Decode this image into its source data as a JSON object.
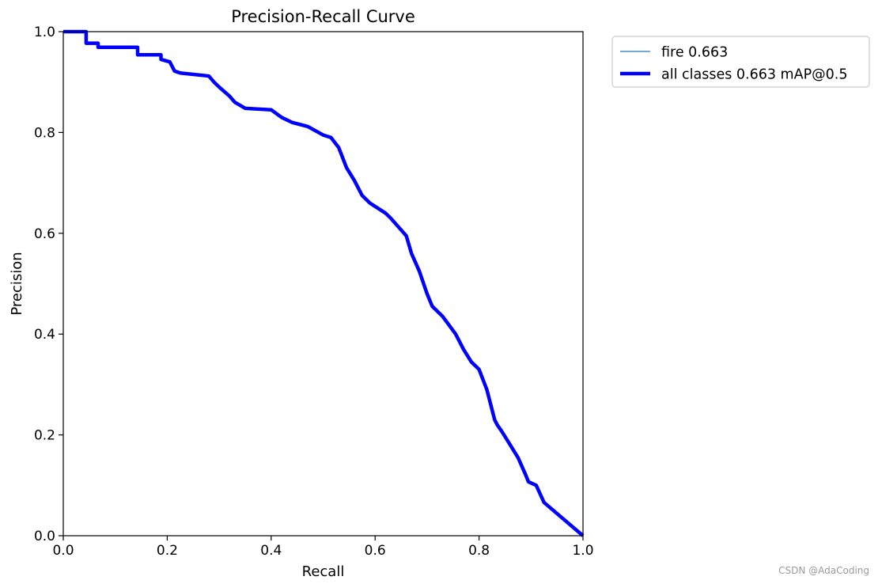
{
  "chart_data": {
    "type": "line",
    "title": "Precision-Recall Curve",
    "xlabel": "Recall",
    "ylabel": "Precision",
    "xlim": [
      0,
      1
    ],
    "ylim": [
      0,
      1
    ],
    "xticks": [
      "0.0",
      "0.2",
      "0.4",
      "0.6",
      "0.8",
      "1.0"
    ],
    "yticks": [
      "0.0",
      "0.2",
      "0.4",
      "0.6",
      "0.8",
      "1.0"
    ],
    "grid": false,
    "legend_position": "outside-top-right",
    "series": [
      {
        "name": "fire 0.663",
        "color": "#1f77b4",
        "line_width": "thin",
        "x": [
          0.0,
          0.044,
          0.044,
          0.067,
          0.067,
          0.143,
          0.143,
          0.188,
          0.188,
          0.205,
          0.21,
          0.214,
          0.225,
          0.28,
          0.29,
          0.3,
          0.32,
          0.33,
          0.35,
          0.4,
          0.42,
          0.44,
          0.47,
          0.5,
          0.515,
          0.53,
          0.545,
          0.56,
          0.575,
          0.59,
          0.62,
          0.63,
          0.66,
          0.67,
          0.685,
          0.7,
          0.71,
          0.72,
          0.73,
          0.755,
          0.77,
          0.785,
          0.8,
          0.815,
          0.83,
          0.835,
          0.845,
          0.86,
          0.875,
          0.89,
          0.895,
          0.91,
          0.925,
          1.0
        ],
        "y": [
          1.0,
          1.0,
          0.977,
          0.977,
          0.969,
          0.969,
          0.954,
          0.954,
          0.945,
          0.94,
          0.93,
          0.922,
          0.918,
          0.912,
          0.9,
          0.89,
          0.872,
          0.86,
          0.848,
          0.845,
          0.83,
          0.82,
          0.812,
          0.795,
          0.79,
          0.77,
          0.73,
          0.705,
          0.675,
          0.66,
          0.64,
          0.63,
          0.595,
          0.56,
          0.525,
          0.48,
          0.455,
          0.445,
          0.435,
          0.4,
          0.37,
          0.345,
          0.33,
          0.29,
          0.23,
          0.22,
          0.205,
          0.18,
          0.155,
          0.12,
          0.107,
          0.1,
          0.066,
          0.0
        ]
      },
      {
        "name": "all classes 0.663 mAP@0.5",
        "color": "#0000ff",
        "line_width": "thick",
        "x": [
          0.0,
          0.044,
          0.044,
          0.067,
          0.067,
          0.143,
          0.143,
          0.188,
          0.188,
          0.205,
          0.21,
          0.214,
          0.225,
          0.28,
          0.29,
          0.3,
          0.32,
          0.33,
          0.35,
          0.4,
          0.42,
          0.44,
          0.47,
          0.5,
          0.515,
          0.53,
          0.545,
          0.56,
          0.575,
          0.59,
          0.62,
          0.63,
          0.66,
          0.67,
          0.685,
          0.7,
          0.71,
          0.72,
          0.73,
          0.755,
          0.77,
          0.785,
          0.8,
          0.815,
          0.83,
          0.835,
          0.845,
          0.86,
          0.875,
          0.89,
          0.895,
          0.91,
          0.925,
          1.0
        ],
        "y": [
          1.0,
          1.0,
          0.977,
          0.977,
          0.969,
          0.969,
          0.954,
          0.954,
          0.945,
          0.94,
          0.93,
          0.922,
          0.918,
          0.912,
          0.9,
          0.89,
          0.872,
          0.86,
          0.848,
          0.845,
          0.83,
          0.82,
          0.812,
          0.795,
          0.79,
          0.77,
          0.73,
          0.705,
          0.675,
          0.66,
          0.64,
          0.63,
          0.595,
          0.56,
          0.525,
          0.48,
          0.455,
          0.445,
          0.435,
          0.4,
          0.37,
          0.345,
          0.33,
          0.29,
          0.23,
          0.22,
          0.205,
          0.18,
          0.155,
          0.12,
          0.107,
          0.1,
          0.066,
          0.0
        ]
      }
    ]
  },
  "watermark": "CSDN @AdaCoding"
}
